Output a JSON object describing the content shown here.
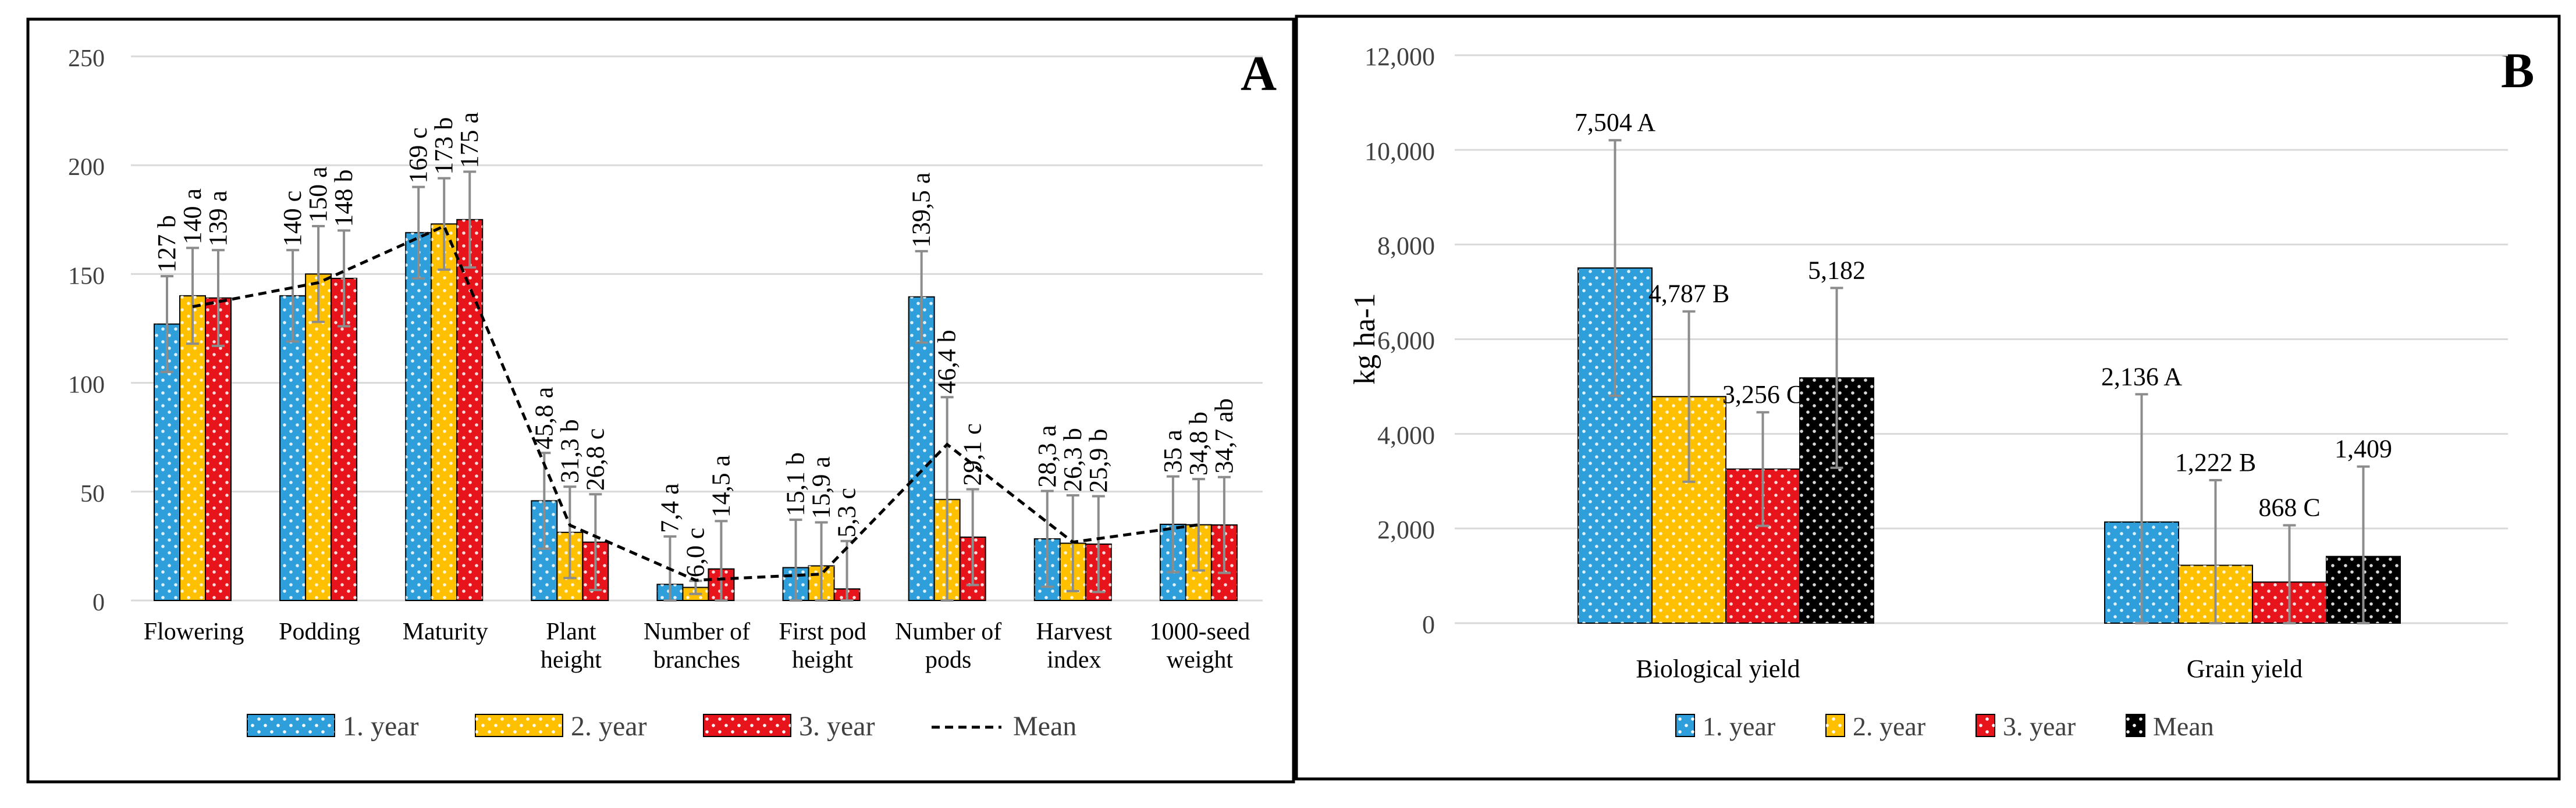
{
  "colors": {
    "year1": "#2E9FDB",
    "year2": "#FFC000",
    "year3": "#E8141B",
    "mean": "#000000",
    "error_bar": "#8C8C8C",
    "grid": "#D9D9D9",
    "axis_text": "#404040"
  },
  "chart_data": [
    {
      "id": "A",
      "panel_label": "A",
      "type": "bar",
      "title": "",
      "xlabel": "",
      "ylabel": "",
      "ylim": [
        0,
        250
      ],
      "yticks": [
        0,
        50,
        100,
        150,
        200,
        250
      ],
      "ytick_labels": [
        "0",
        "50",
        "100",
        "150",
        "200",
        "250"
      ],
      "grid": true,
      "legend_position": "bottom",
      "categories": [
        [
          "Flowering"
        ],
        [
          "Podding"
        ],
        [
          "Maturity"
        ],
        [
          "Plant",
          "height"
        ],
        [
          "Number of",
          "branches"
        ],
        [
          "First pod",
          "height"
        ],
        [
          "Number of",
          "pods"
        ],
        [
          "Harvest",
          "index"
        ],
        [
          "1000-seed",
          "weight"
        ]
      ],
      "series": [
        {
          "name": "1. year",
          "color_key": "year1",
          "values": [
            127,
            140,
            169,
            45.8,
            7.4,
            15.1,
            139.5,
            28.3,
            35
          ],
          "labels": [
            "127 b",
            "140 c",
            "169 c",
            "45,8 a",
            "7,4 a",
            "15,1 b",
            "139,5 a",
            "28,3 a",
            "35 a"
          ],
          "error": [
            22,
            21,
            21,
            22,
            22,
            22,
            21,
            22,
            22
          ]
        },
        {
          "name": "2. year",
          "color_key": "year2",
          "values": [
            140,
            150,
            173,
            31.3,
            6.0,
            15.9,
            46.4,
            26.3,
            34.8
          ],
          "labels": [
            "140 a",
            "150 a",
            "173 b",
            "31,3 b",
            "6,0 c",
            "15,9 a",
            "46,4 b",
            "26,3 b",
            "34,8 b"
          ],
          "error": [
            22,
            22,
            21,
            21,
            3,
            20,
            47,
            22,
            21
          ]
        },
        {
          "name": "3. year",
          "color_key": "year3",
          "values": [
            139,
            148,
            175,
            26.8,
            14.5,
            5.3,
            29.1,
            25.9,
            34.7
          ],
          "labels": [
            "139 a",
            "148 b",
            "175 a",
            "26,8 c",
            "14,5 a",
            "5,3 c",
            "29,1 c",
            "25,9 b",
            "34,7 ab"
          ],
          "error": [
            22,
            22,
            22,
            22,
            22,
            22,
            22,
            22,
            22
          ]
        }
      ],
      "mean_line": {
        "name": "Mean",
        "values": [
          135,
          146,
          172,
          34.6,
          9.3,
          12.1,
          71.7,
          26.8,
          34.8
        ]
      },
      "legend": [
        "1. year",
        "2. year",
        "3. year",
        "Mean"
      ]
    },
    {
      "id": "B",
      "panel_label": "B",
      "type": "bar",
      "title": "",
      "xlabel": "",
      "ylabel": "kg ha-1",
      "ylim": [
        0,
        12000
      ],
      "yticks": [
        0,
        2000,
        4000,
        6000,
        8000,
        10000,
        12000
      ],
      "ytick_labels": [
        "0",
        "2,000",
        "4,000",
        "6,000",
        "8,000",
        "10,000",
        "12,000"
      ],
      "grid": true,
      "legend_position": "bottom",
      "categories": [
        [
          "Biological yield"
        ],
        [
          "Grain yield"
        ]
      ],
      "series": [
        {
          "name": "1. year",
          "color_key": "year1",
          "values": [
            7504,
            2136
          ],
          "labels": [
            "7,504 A",
            "2,136 A"
          ],
          "error": [
            2700,
            2700
          ]
        },
        {
          "name": "2. year",
          "color_key": "year2",
          "values": [
            4787,
            1222
          ],
          "labels": [
            "4,787 B",
            "1,222 B"
          ],
          "error": [
            1800,
            1800
          ]
        },
        {
          "name": "3. year",
          "color_key": "year3",
          "values": [
            3256,
            868
          ],
          "labels": [
            "3,256 C",
            "868 C"
          ],
          "error": [
            1200,
            1200
          ]
        },
        {
          "name": "Mean",
          "color_key": "mean",
          "values": [
            5182,
            1409
          ],
          "labels": [
            "5,182",
            "1,409"
          ],
          "error": [
            1900,
            1900
          ]
        }
      ],
      "legend": [
        "1. year",
        "2. year",
        "3. year",
        "Mean"
      ]
    }
  ]
}
